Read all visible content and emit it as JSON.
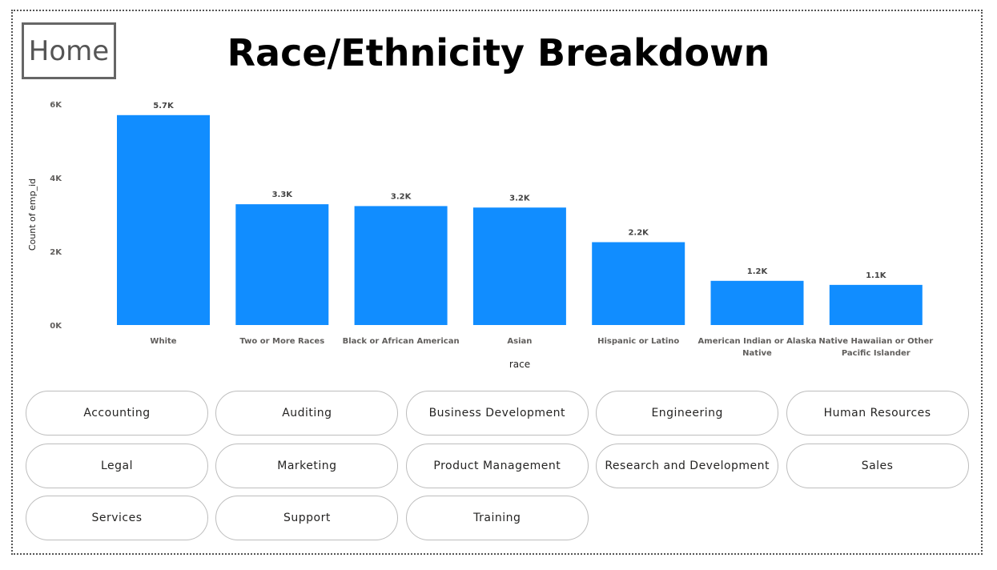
{
  "home": {
    "label": "Home"
  },
  "title": "Race/Ethnicity Breakdown",
  "colors": {
    "bar": "#118DFF",
    "axis_text": "#605E5C",
    "label_text": "#444444"
  },
  "chart_data": {
    "type": "bar",
    "categories": [
      "White",
      "Two or More Races",
      "Black or African American",
      "Asian",
      "Hispanic or Latino",
      "American Indian or Alaska Native",
      "Native Hawaiian or Other Pacific Islander"
    ],
    "category_lines": [
      [
        "White"
      ],
      [
        "Two or More Races"
      ],
      [
        "Black or African American"
      ],
      [
        "Asian"
      ],
      [
        "Hispanic or Latino"
      ],
      [
        "American Indian or Alaska",
        "Native"
      ],
      [
        "Native Hawaiian or Other",
        "Pacific Islander"
      ]
    ],
    "values": [
      5700,
      3280,
      3230,
      3190,
      2250,
      1200,
      1090
    ],
    "data_labels": [
      "5.7K",
      "3.3K",
      "3.2K",
      "3.2K",
      "2.2K",
      "1.2K",
      "1.1K"
    ],
    "xlabel": "race",
    "ylabel": "Count of emp_id",
    "ylim": [
      0,
      6000
    ],
    "yticks": [
      {
        "value": 0,
        "label": "0K"
      },
      {
        "value": 2000,
        "label": "2K"
      },
      {
        "value": 4000,
        "label": "4K"
      },
      {
        "value": 6000,
        "label": "6K"
      }
    ],
    "grid": false
  },
  "departments": [
    "Accounting",
    "Auditing",
    "Business Development",
    "Engineering",
    "Human Resources",
    "Legal",
    "Marketing",
    "Product Management",
    "Research and Development",
    "Sales",
    "Services",
    "Support",
    "Training"
  ]
}
